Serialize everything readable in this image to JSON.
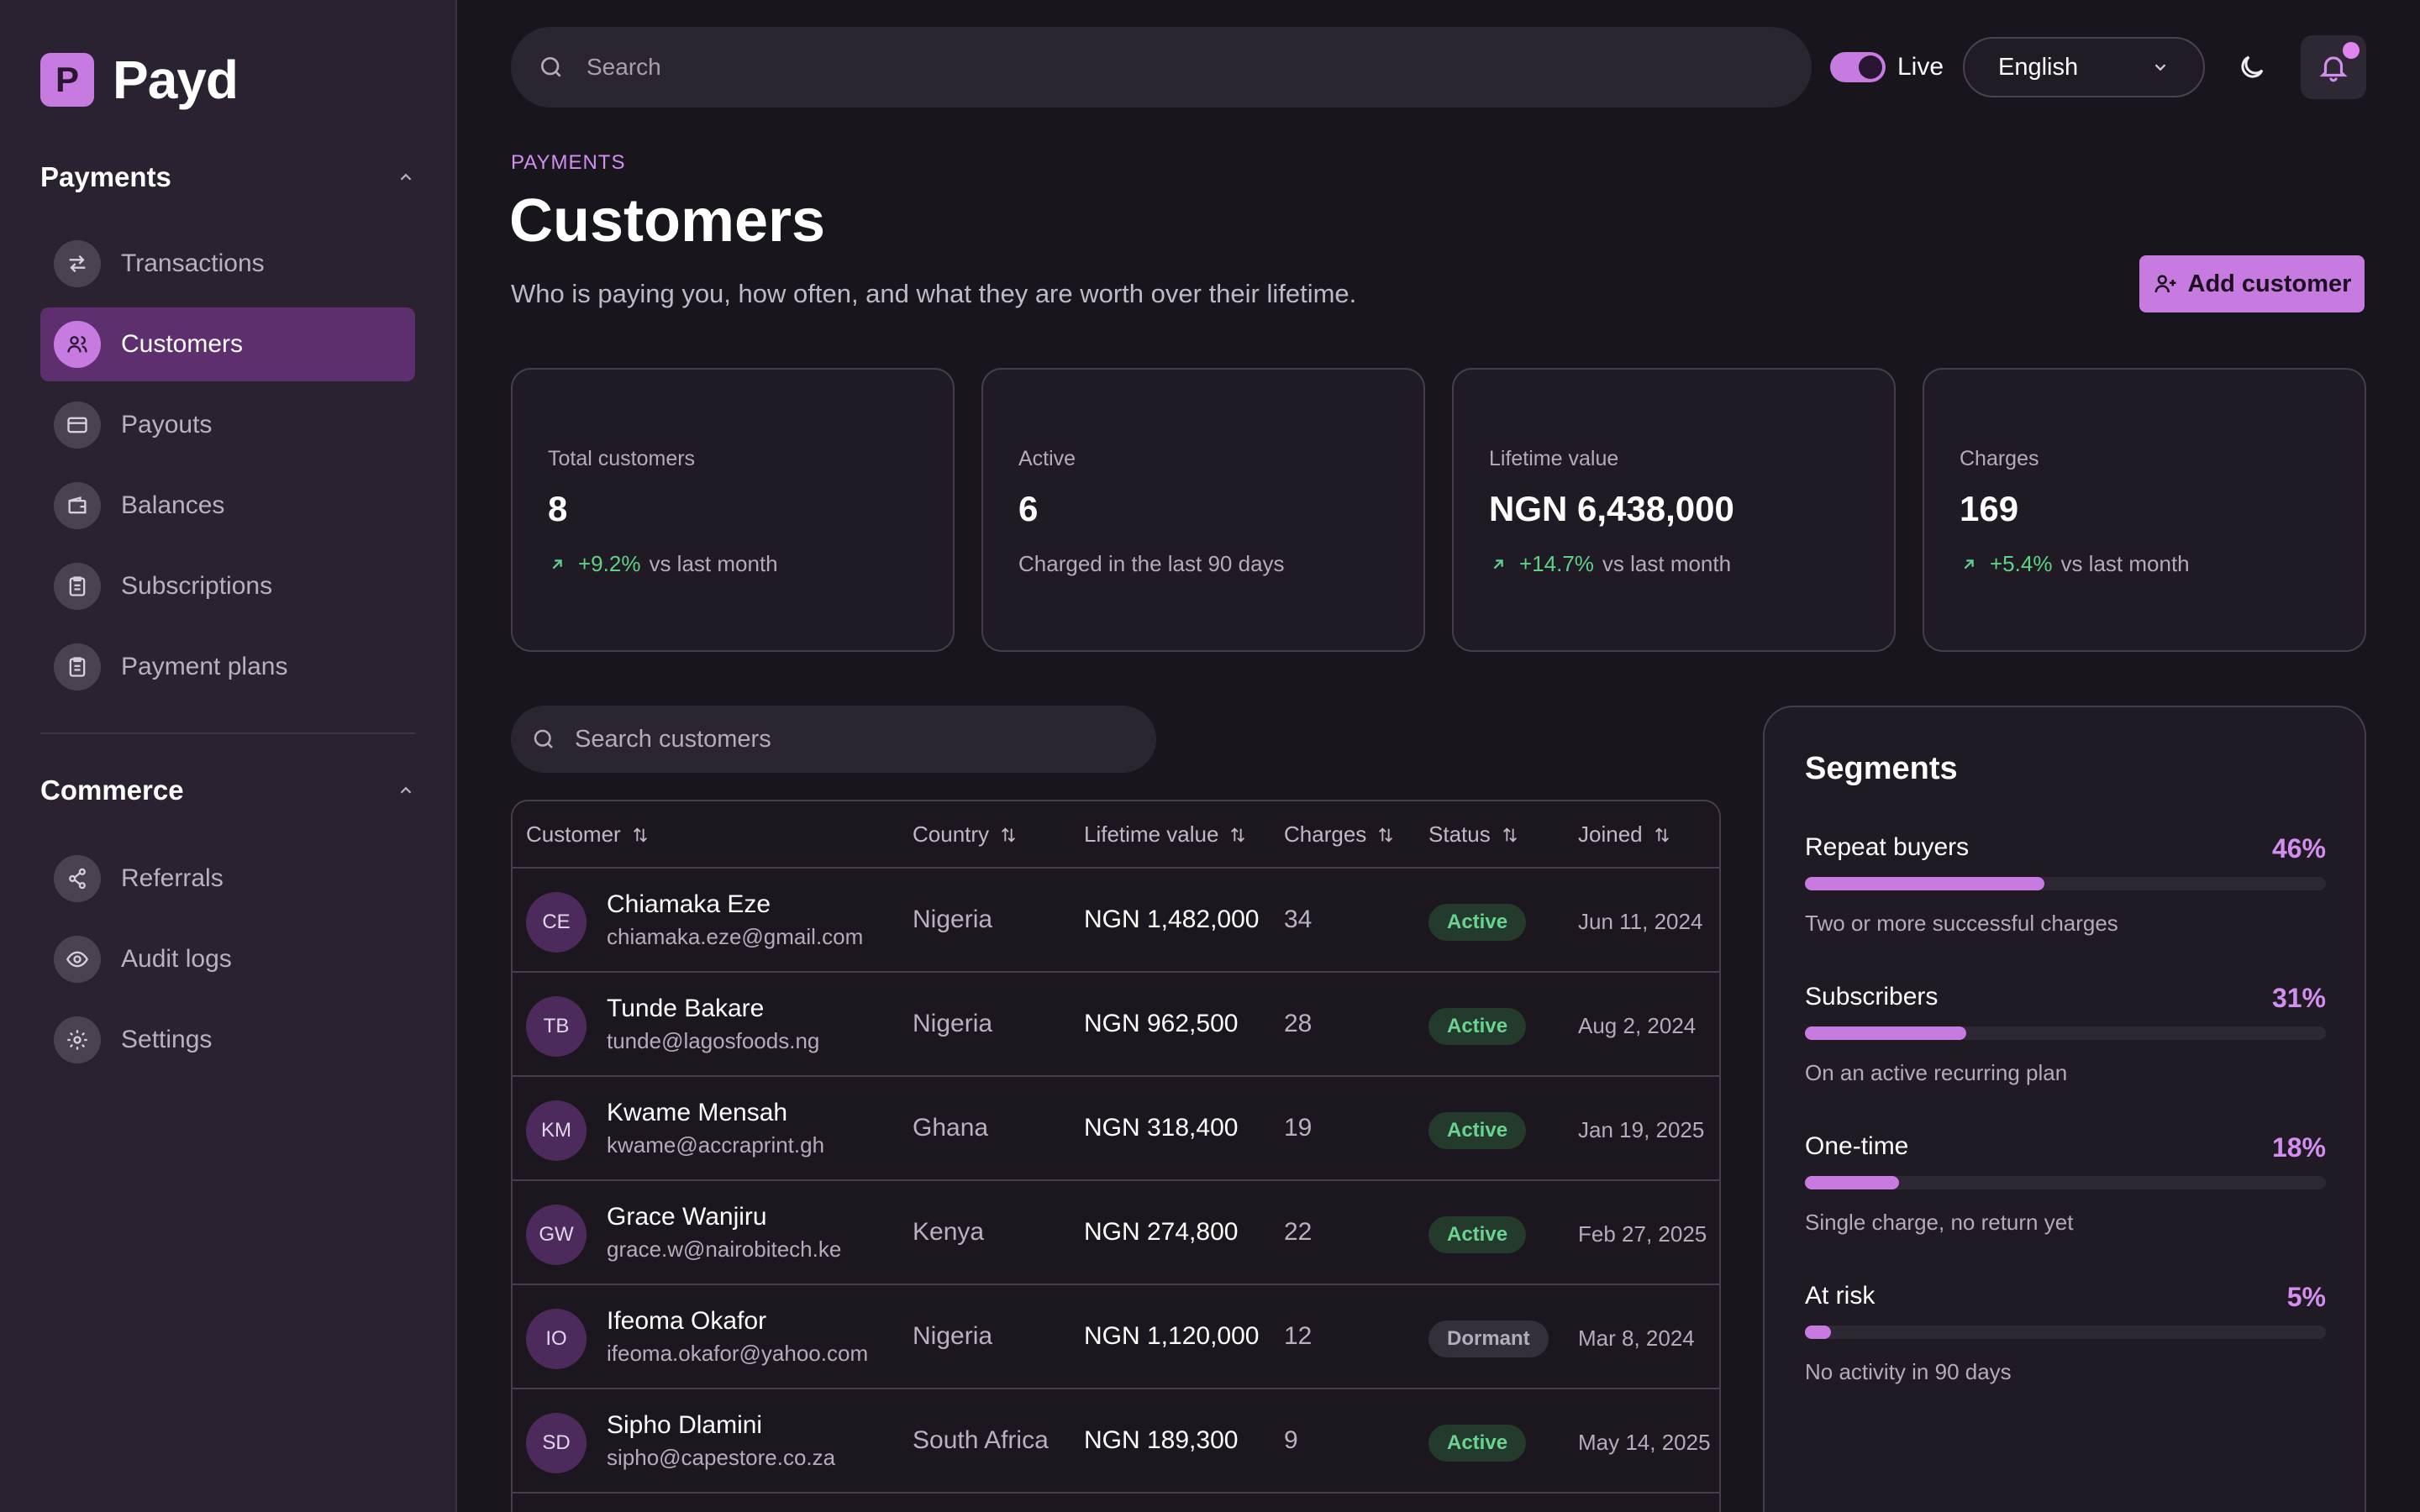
{
  "brand": {
    "logo_letter": "P",
    "name": "Payd",
    "accent": "#c77ae0"
  },
  "sidebar": {
    "payments": {
      "title": "Payments",
      "items": [
        {
          "label": "Transactions",
          "icon": "arrows-exchange-icon"
        },
        {
          "label": "Customers",
          "icon": "users-icon",
          "active": true
        },
        {
          "label": "Payouts",
          "icon": "credit-card-icon"
        },
        {
          "label": "Balances",
          "icon": "wallet-icon"
        },
        {
          "label": "Subscriptions",
          "icon": "clipboard-icon"
        },
        {
          "label": "Payment plans",
          "icon": "clipboard-icon"
        }
      ]
    },
    "commerce": {
      "title": "Commerce",
      "items": [
        {
          "label": "Referrals",
          "icon": "share-icon"
        },
        {
          "label": "Audit logs",
          "icon": "eye-icon"
        },
        {
          "label": "Settings",
          "icon": "gear-icon"
        }
      ]
    }
  },
  "topbar": {
    "search_placeholder": "Search",
    "live_label": "Live",
    "live_on": true,
    "language": "English"
  },
  "page": {
    "eyebrow": "PAYMENTS",
    "title": "Customers",
    "subtitle": "Who is paying you, how often, and what they are worth over their lifetime.",
    "add_button": "Add customer"
  },
  "stats": [
    {
      "label": "Total customers",
      "value": "8",
      "delta": "+9.2%",
      "note": "vs last month"
    },
    {
      "label": "Active",
      "value": "6",
      "delta": "",
      "note": "Charged in the last 90 days"
    },
    {
      "label": "Lifetime value",
      "value": "NGN 6,438,000",
      "delta": "+14.7%",
      "note": "vs last month"
    },
    {
      "label": "Charges",
      "value": "169",
      "delta": "+5.4%",
      "note": "vs last month"
    }
  ],
  "table": {
    "search_placeholder": "Search customers",
    "columns": [
      "Customer",
      "Country",
      "Lifetime value",
      "Charges",
      "Status",
      "Joined"
    ],
    "rows": [
      {
        "initials": "CE",
        "name": "Chiamaka Eze",
        "email": "chiamaka.eze@gmail.com",
        "country": "Nigeria",
        "ltv": "NGN 1,482,000",
        "charges": "34",
        "status": "Active",
        "joined": "Jun 11, 2024"
      },
      {
        "initials": "TB",
        "name": "Tunde Bakare",
        "email": "tunde@lagosfoods.ng",
        "country": "Nigeria",
        "ltv": "NGN 962,500",
        "charges": "28",
        "status": "Active",
        "joined": "Aug 2, 2024"
      },
      {
        "initials": "KM",
        "name": "Kwame Mensah",
        "email": "kwame@accraprint.gh",
        "country": "Ghana",
        "ltv": "NGN 318,400",
        "charges": "19",
        "status": "Active",
        "joined": "Jan 19, 2025"
      },
      {
        "initials": "GW",
        "name": "Grace Wanjiru",
        "email": "grace.w@nairobitech.ke",
        "country": "Kenya",
        "ltv": "NGN 274,800",
        "charges": "22",
        "status": "Active",
        "joined": "Feb 27, 2025"
      },
      {
        "initials": "IO",
        "name": "Ifeoma Okafor",
        "email": "ifeoma.okafor@yahoo.com",
        "country": "Nigeria",
        "ltv": "NGN 1,120,000",
        "charges": "12",
        "status": "Dormant",
        "joined": "Mar 8, 2024"
      },
      {
        "initials": "SD",
        "name": "Sipho Dlamini",
        "email": "sipho@capestore.co.za",
        "country": "South Africa",
        "ltv": "NGN 189,300",
        "charges": "9",
        "status": "Active",
        "joined": "May 14, 2025"
      }
    ]
  },
  "segments": {
    "title": "Segments",
    "items": [
      {
        "label": "Repeat buyers",
        "percent": "46%",
        "value": 46,
        "desc": "Two or more successful charges"
      },
      {
        "label": "Subscribers",
        "percent": "31%",
        "value": 31,
        "desc": "On an active recurring plan"
      },
      {
        "label": "One-time",
        "percent": "18%",
        "value": 18,
        "desc": "Single charge, no return yet"
      },
      {
        "label": "At risk",
        "percent": "5%",
        "value": 5,
        "desc": "No activity in 90 days"
      }
    ]
  }
}
